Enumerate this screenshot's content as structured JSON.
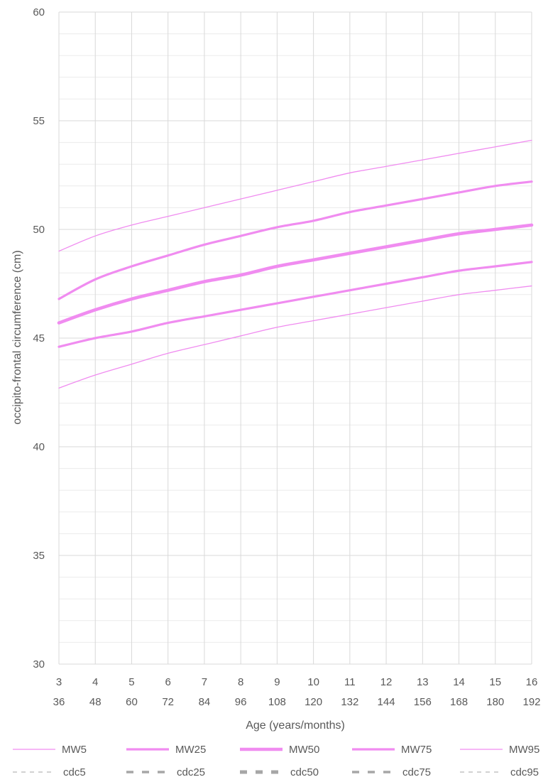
{
  "chart_data": {
    "type": "line",
    "ylabel": "occipito-frontal circumference (cm)",
    "xlabel": "Age (years/months)",
    "ylim": [
      30,
      60
    ],
    "y_ticks": [
      "30",
      "35",
      "40",
      "45",
      "50",
      "55",
      "60"
    ],
    "x_ticks_years": [
      "3",
      "4",
      "5",
      "6",
      "7",
      "8",
      "9",
      "10",
      "11",
      "12",
      "13",
      "14",
      "15",
      "16"
    ],
    "x_ticks_months": [
      "36",
      "48",
      "60",
      "72",
      "84",
      "96",
      "108",
      "120",
      "132",
      "144",
      "156",
      "168",
      "180",
      "192"
    ],
    "x": [
      36,
      48,
      60,
      72,
      84,
      96,
      108,
      120,
      132,
      144,
      156,
      168,
      180,
      192
    ],
    "grid": true,
    "legend_position": "bottom",
    "series": [
      {
        "name": "MW5",
        "color": "#f08cf0",
        "values": [
          42.7,
          43.3,
          43.8,
          44.3,
          44.7,
          45.1,
          45.5,
          45.8,
          46.1,
          46.4,
          46.7,
          47.0,
          47.2,
          47.4
        ]
      },
      {
        "name": "MW25",
        "color": "#f08cf0",
        "values": [
          44.6,
          45.0,
          45.3,
          45.7,
          46.0,
          46.3,
          46.6,
          46.9,
          47.2,
          47.5,
          47.8,
          48.1,
          48.3,
          48.5
        ]
      },
      {
        "name": "MW50",
        "color": "#f08cf0",
        "values": [
          45.7,
          46.3,
          46.8,
          47.2,
          47.6,
          47.9,
          48.3,
          48.6,
          48.9,
          49.2,
          49.5,
          49.8,
          50.0,
          50.2
        ]
      },
      {
        "name": "MW75",
        "color": "#f08cf0",
        "values": [
          46.8,
          47.7,
          48.3,
          48.8,
          49.3,
          49.7,
          50.1,
          50.4,
          50.8,
          51.1,
          51.4,
          51.7,
          52.0,
          52.2
        ]
      },
      {
        "name": "MW95",
        "color": "#f08cf0",
        "values": [
          49.0,
          49.7,
          50.2,
          50.6,
          51.0,
          51.4,
          51.8,
          52.2,
          52.6,
          52.9,
          53.2,
          53.5,
          53.8,
          54.1
        ]
      }
    ],
    "legend_extra": [
      {
        "name": "cdc5",
        "color": "#a6a6a6"
      },
      {
        "name": "cdc25",
        "color": "#a6a6a6"
      },
      {
        "name": "cdc50",
        "color": "#a6a6a6"
      },
      {
        "name": "cdc75",
        "color": "#a6a6a6"
      },
      {
        "name": "cdc95",
        "color": "#a6a6a6"
      }
    ]
  }
}
